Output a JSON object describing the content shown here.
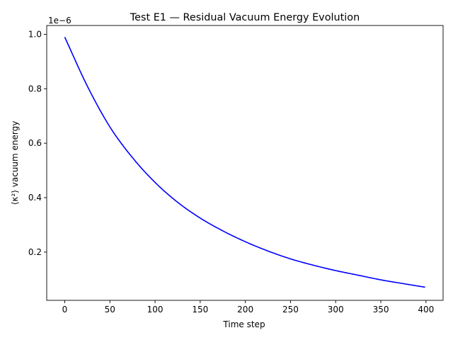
{
  "chart_data": {
    "type": "line",
    "title": "Test E1 — Residual Vacuum Energy Evolution",
    "xlabel": "Time step",
    "ylabel": "⟨κ²⟩ vacuum energy",
    "offset_text": "1e−6",
    "x_ticks": [
      0,
      50,
      100,
      150,
      200,
      250,
      300,
      350,
      400
    ],
    "x_tick_labels": [
      "0",
      "50",
      "100",
      "150",
      "200",
      "250",
      "300",
      "350",
      "400"
    ],
    "y_ticks": [
      0.2,
      0.4,
      0.6,
      0.8,
      1.0
    ],
    "y_tick_labels": [
      "0.2",
      "0.4",
      "0.6",
      "0.8",
      "1.0"
    ],
    "xlim": [
      -19.95,
      418.95
    ],
    "ylim": [
      0.0227,
      1.0325
    ],
    "grid": false,
    "series": [
      {
        "color": "#0000ff",
        "x": [
          0,
          25,
          50,
          75,
          100,
          125,
          150,
          175,
          200,
          225,
          250,
          275,
          300,
          325,
          350,
          375,
          399
        ],
        "y": [
          0.99,
          0.81,
          0.66,
          0.547,
          0.456,
          0.383,
          0.325,
          0.278,
          0.238,
          0.204,
          0.175,
          0.152,
          0.132,
          0.115,
          0.098,
          0.084,
          0.071
        ]
      }
    ]
  }
}
